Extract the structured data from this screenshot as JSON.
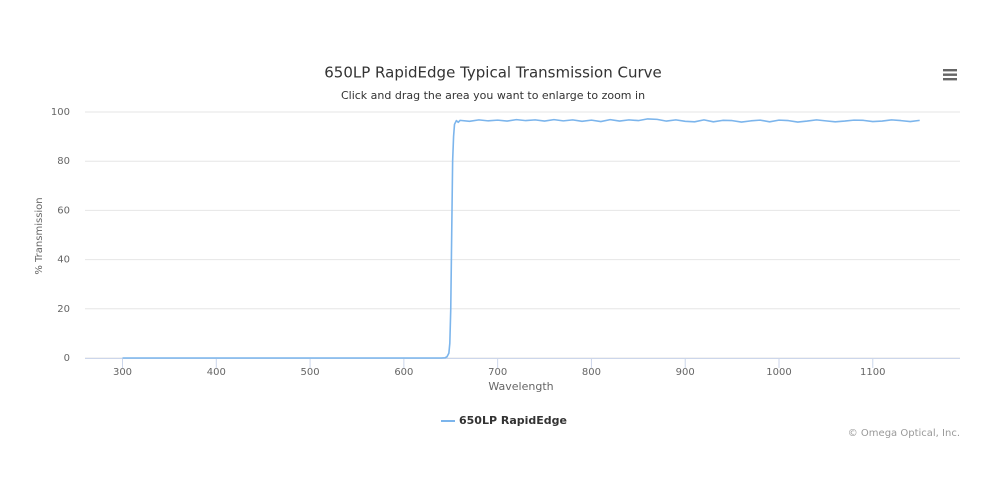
{
  "chart_data": {
    "type": "line",
    "title": "650LP RapidEdge Typical Transmission Curve",
    "subtitle": "Click and drag the area you want to enlarge to zoom in",
    "y_label": "% Transmission",
    "x_label": "Wavelength",
    "credit": "© Omega Optical, Inc.",
    "x": [
      300,
      400,
      500,
      600,
      640,
      644,
      646,
      648,
      649,
      650,
      651,
      652,
      653,
      654,
      656,
      658,
      660,
      670,
      680,
      690,
      700,
      710,
      720,
      730,
      740,
      750,
      760,
      770,
      780,
      790,
      800,
      810,
      820,
      830,
      840,
      850,
      860,
      870,
      880,
      890,
      900,
      910,
      920,
      930,
      940,
      950,
      960,
      970,
      980,
      990,
      1000,
      1010,
      1020,
      1030,
      1040,
      1050,
      1060,
      1070,
      1080,
      1090,
      1100,
      1110,
      1120,
      1130,
      1140,
      1150
    ],
    "series": [
      {
        "name": "650LP RapidEdge",
        "color": "#7cb5ec",
        "values": [
          0,
          0,
          0,
          0,
          0,
          0.1,
          0.5,
          2,
          6,
          20,
          50,
          80,
          90,
          95,
          96.5,
          95.8,
          96.6,
          96.2,
          96.8,
          96.4,
          96.7,
          96.3,
          96.9,
          96.5,
          96.8,
          96.3,
          96.9,
          96.4,
          96.8,
          96.2,
          96.7,
          96.1,
          96.9,
          96.3,
          96.8,
          96.5,
          97.2,
          97.0,
          96.3,
          96.8,
          96.2,
          96.0,
          96.8,
          96.0,
          96.6,
          96.5,
          95.9,
          96.4,
          96.7,
          96.0,
          96.7,
          96.5,
          95.9,
          96.3,
          96.8,
          96.4,
          96.0,
          96.3,
          96.7,
          96.6,
          96.1,
          96.3,
          96.8,
          96.5,
          96.1,
          96.6
        ]
      }
    ],
    "xlim": [
      260,
      1193
    ],
    "ylim": [
      0,
      100
    ],
    "xticks": [
      300,
      400,
      500,
      600,
      700,
      800,
      900,
      1000,
      1100
    ],
    "yticks": [
      0,
      20,
      40,
      60,
      80,
      100
    ],
    "grid": true
  }
}
